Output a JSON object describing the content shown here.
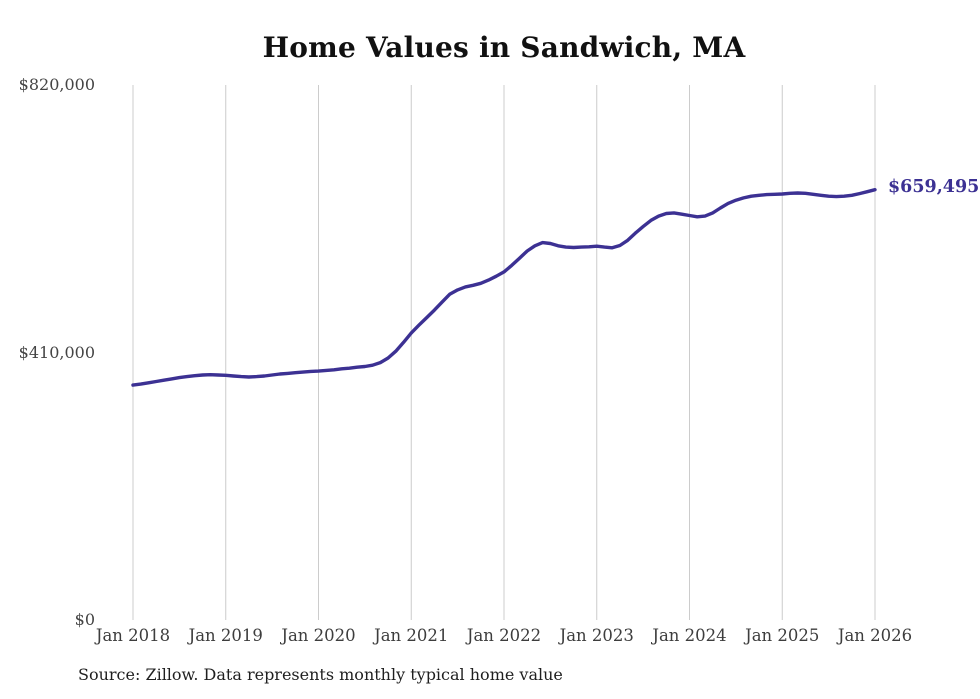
{
  "header": {
    "title": "Home Values in Sandwich, MA"
  },
  "footer": {
    "source_note": "Source: Zillow. Data represents monthly typical home value"
  },
  "annotations": {
    "latest_value_label": "$659,495"
  },
  "colors": {
    "line": "#3c3193",
    "gridline": "#cccccc",
    "title_text": "#111111",
    "axis_text": "#444444",
    "end_label_text": "#3c3193",
    "source_text": "#1f1f1f",
    "background": "#ffffff"
  },
  "chart_data": {
    "type": "line",
    "title": "Home Values in Sandwich, MA",
    "xlabel": "",
    "ylabel": "",
    "ylim": [
      0,
      820000
    ],
    "grid": "vertical-only",
    "legend": "none",
    "x_tick_labels": [
      "Jan 2018",
      "Jan 2019",
      "Jan 2020",
      "Jan 2021",
      "Jan 2022",
      "Jan 2023",
      "Jan 2024",
      "Jan 2025",
      "Jan 2026"
    ],
    "y_ticks": [
      {
        "value": 0,
        "label": "$0"
      },
      {
        "value": 410000,
        "label": "$410,000"
      },
      {
        "value": 820000,
        "label": "$820,000"
      }
    ],
    "end_annotation": {
      "text": "$659,495",
      "value": 659495
    },
    "series": [
      {
        "name": "Typical home value",
        "x_start": "2018-01",
        "x_interval": "monthly",
        "values": [
          360000,
          361500,
          363500,
          365500,
          367500,
          369500,
          371500,
          373000,
          374500,
          375500,
          376000,
          375500,
          375000,
          374000,
          373000,
          372500,
          373000,
          374000,
          375500,
          377000,
          378000,
          379000,
          380000,
          381000,
          381500,
          382500,
          383500,
          385000,
          386000,
          387500,
          388500,
          390500,
          394500,
          401500,
          412000,
          425500,
          440000,
          452000,
          463500,
          475000,
          487500,
          499500,
          506000,
          510500,
          513000,
          516000,
          521000,
          527000,
          533500,
          543500,
          554500,
          565500,
          573500,
          578500,
          577000,
          573500,
          571500,
          571000,
          571500,
          572000,
          573000,
          571500,
          570500,
          574000,
          582000,
          593000,
          603000,
          612500,
          619000,
          623000,
          624000,
          622000,
          620000,
          618000,
          619000,
          624000,
          631500,
          638500,
          643500,
          647000,
          649500,
          651000,
          652000,
          652500,
          653000,
          654000,
          654500,
          654000,
          652500,
          651000,
          649500,
          649000,
          649500,
          651000,
          653500,
          656500,
          659495
        ]
      }
    ]
  }
}
